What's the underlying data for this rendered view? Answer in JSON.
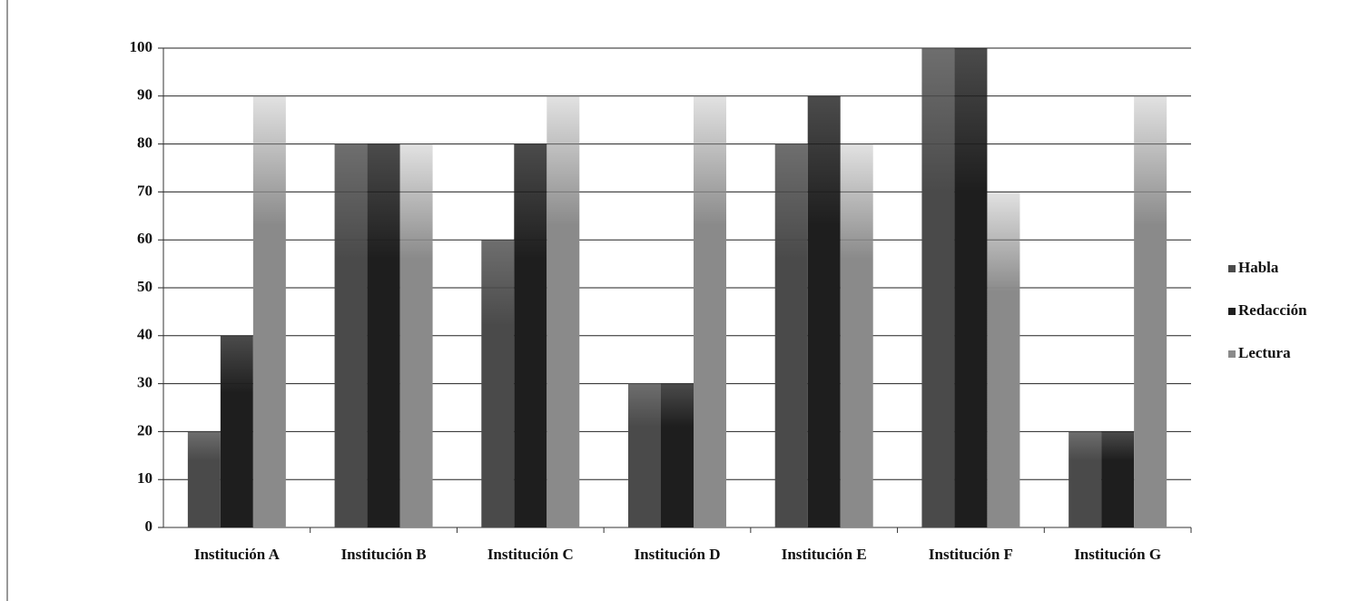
{
  "chart_data": {
    "type": "bar",
    "categories": [
      "Institución A",
      "Institución B",
      "Institución C",
      "Institución D",
      "Institución E",
      "Institución F",
      "Institución G"
    ],
    "series": [
      {
        "name": "Habla",
        "color": "#4a4a4a",
        "values": [
          20,
          80,
          60,
          30,
          80,
          100,
          20
        ]
      },
      {
        "name": "Redacción",
        "color": "#1e1e1e",
        "values": [
          40,
          80,
          80,
          30,
          90,
          100,
          20
        ]
      },
      {
        "name": "Lectura",
        "color": "#8a8a8a",
        "values": [
          90,
          80,
          90,
          90,
          80,
          70,
          90
        ]
      }
    ],
    "ylim": [
      0,
      100
    ],
    "yticks": [
      0,
      10,
      20,
      30,
      40,
      50,
      60,
      70,
      80,
      90,
      100
    ],
    "grid": true,
    "legend": "right"
  }
}
